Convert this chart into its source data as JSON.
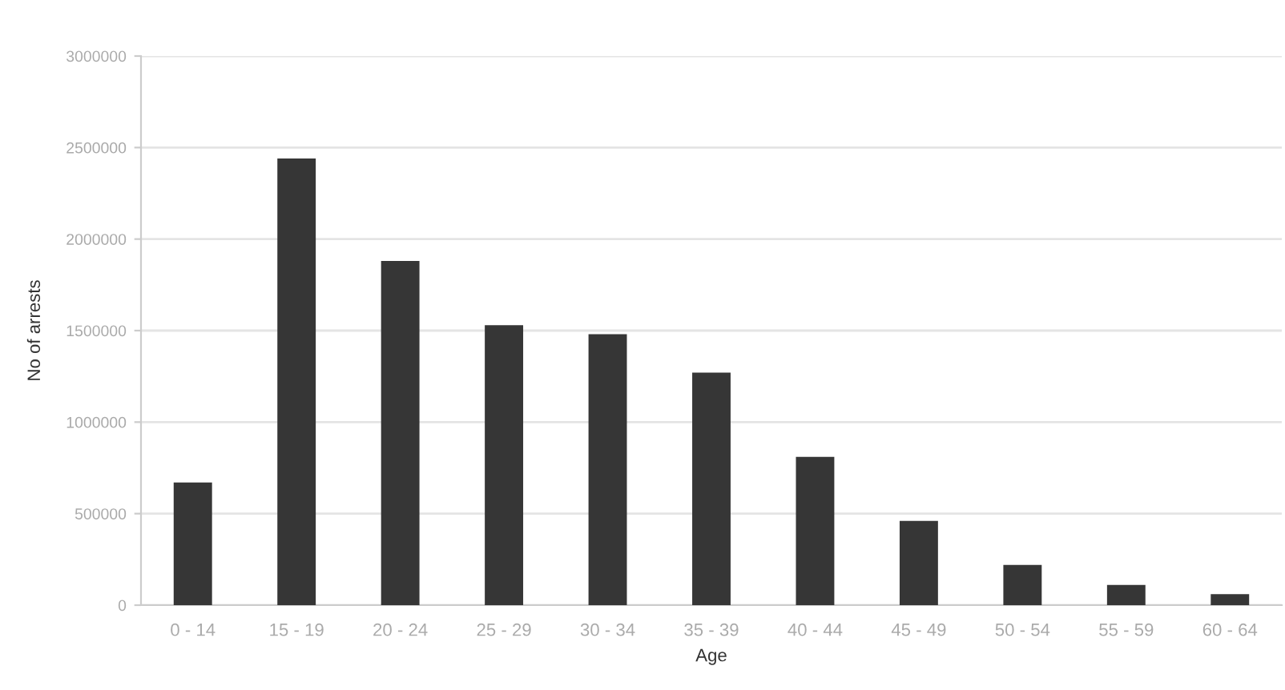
{
  "chart_data": {
    "type": "bar",
    "xlabel": "Age",
    "ylabel": "No of arrests",
    "categories": [
      "0 - 14",
      "15 - 19",
      "20 - 24",
      "25 - 29",
      "30 - 34",
      "35 - 39",
      "40 - 44",
      "45 - 49",
      "50 - 54",
      "55 - 59",
      "60 - 64"
    ],
    "values": [
      670000,
      2440000,
      1880000,
      1530000,
      1480000,
      1270000,
      810000,
      460000,
      220000,
      110000,
      60000
    ],
    "color": "#363636",
    "ylim": [
      0,
      3000000
    ],
    "yticks": [
      0,
      500000,
      1000000,
      1500000,
      2000000,
      2500000,
      3000000
    ],
    "grid": "y",
    "legend": false
  }
}
